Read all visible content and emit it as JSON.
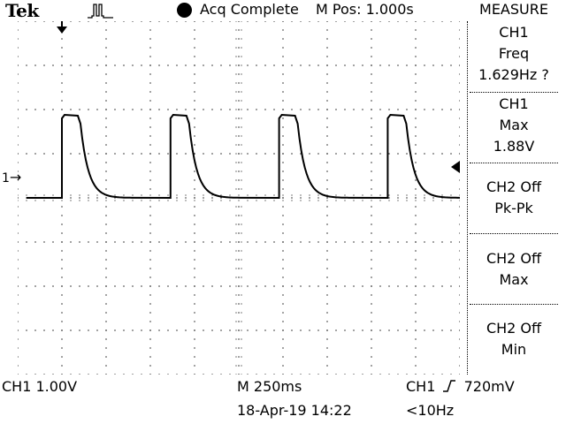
{
  "header": {
    "brand": "Tek",
    "acq_status": "Acq Complete",
    "m_pos": "M Pos: 1.000s",
    "menu_title": "MEASURE",
    "trigger_icon": "pulse-trigger-icon"
  },
  "measure": [
    {
      "lines": [
        "CH1",
        "Freq",
        "1.629Hz ?"
      ]
    },
    {
      "lines": [
        "CH1",
        "Max",
        "1.88V"
      ]
    },
    {
      "lines": [
        "CH2 Off",
        "Pk-Pk"
      ]
    },
    {
      "lines": [
        "CH2 Off",
        "Max"
      ]
    },
    {
      "lines": [
        "CH2 Off",
        "Min"
      ]
    }
  ],
  "footer": {
    "ch1_scale": "CH1  1.00V",
    "timebase": "M 250ms",
    "trigger_ch": "CH1",
    "trigger_level": "720mV",
    "datetime": "18-Apr-19 14:22",
    "trigger_freq": "<10Hz"
  },
  "ch1_marker": "1",
  "trace": {
    "baseline_v": 0.0,
    "high_v": 1.88,
    "period_s": 0.614,
    "pulse_starts_s": [
      0.0,
      0.614,
      1.228,
      1.842
    ]
  },
  "colors": {
    "trace": "#000000",
    "background": "#ffffff",
    "grid": "#000000"
  }
}
